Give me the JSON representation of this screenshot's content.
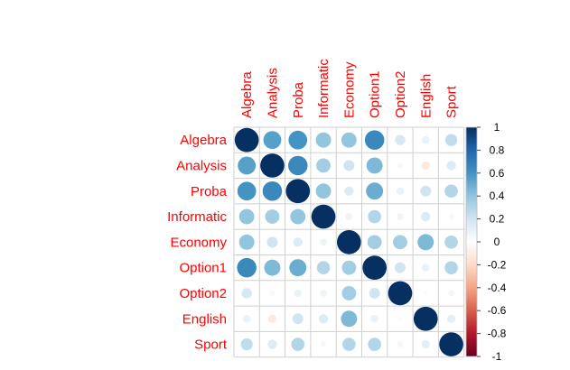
{
  "chart_data": {
    "type": "heatmap",
    "subtype": "correlation-circles",
    "variables": [
      "Algebra",
      "Analysis",
      "Proba",
      "Informatic",
      "Economy",
      "Option1",
      "Option2",
      "English",
      "Sport"
    ],
    "matrix": [
      [
        1.0,
        0.55,
        0.6,
        0.4,
        0.4,
        0.65,
        0.18,
        0.1,
        0.25
      ],
      [
        0.55,
        1.0,
        0.65,
        0.35,
        0.2,
        0.45,
        0.05,
        -0.12,
        0.15
      ],
      [
        0.6,
        0.65,
        1.0,
        0.4,
        0.15,
        0.5,
        0.1,
        0.2,
        0.3
      ],
      [
        0.4,
        0.35,
        0.4,
        1.0,
        0.08,
        0.3,
        0.08,
        0.15,
        0.05
      ],
      [
        0.4,
        0.2,
        0.15,
        0.08,
        1.0,
        0.35,
        0.35,
        0.45,
        0.3
      ],
      [
        0.65,
        0.45,
        0.5,
        0.3,
        0.35,
        1.0,
        0.2,
        0.1,
        0.3
      ],
      [
        0.18,
        0.05,
        0.1,
        0.08,
        0.35,
        0.2,
        1.0,
        0.03,
        0.06
      ],
      [
        0.1,
        -0.12,
        0.2,
        0.15,
        0.45,
        0.1,
        0.03,
        1.0,
        0.12
      ],
      [
        0.25,
        0.15,
        0.3,
        0.05,
        0.3,
        0.3,
        0.06,
        0.12,
        1.0
      ]
    ],
    "label_color": "#ff0000",
    "colorbar": {
      "range": [
        -1,
        1
      ],
      "ticks": [
        "1",
        "0.8",
        "0.6",
        "0.4",
        "0.2",
        "0",
        "-0.2",
        "-0.4",
        "-0.6",
        "-0.8",
        "-1"
      ],
      "colors": [
        "#67001f",
        "#b2182b",
        "#d6604d",
        "#f4a582",
        "#fddbc7",
        "#ffffff",
        "#d1e5f0",
        "#92c5de",
        "#4393c3",
        "#2166ac",
        "#053061"
      ]
    },
    "grid": true,
    "legend_position": "right"
  }
}
